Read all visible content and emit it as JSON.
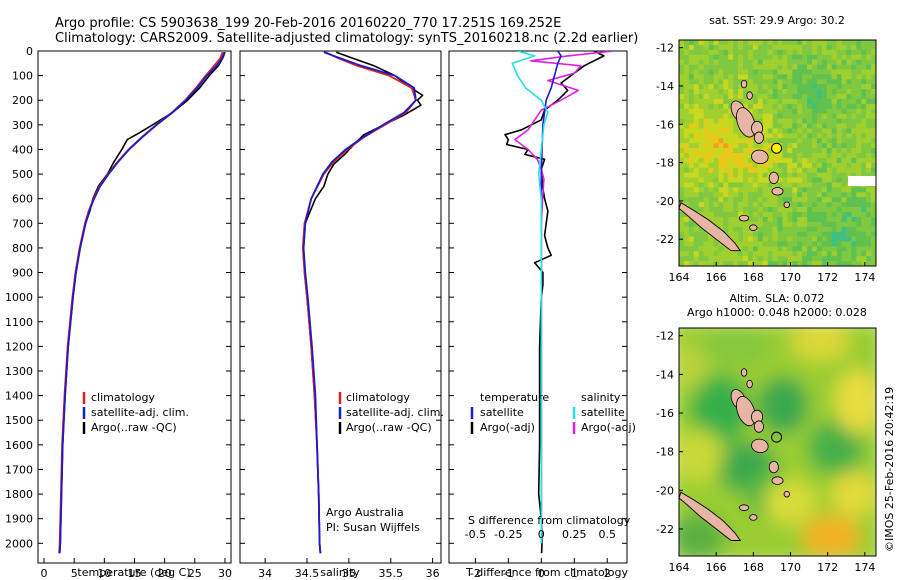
{
  "header": {
    "line1": "Argo profile: CS 5903638_199 20-Feb-2016 20160220_770 17.251S 169.252E",
    "line2": "Climatology: CARS2009. Satellite-adjusted climatology: synTS_20160218.nc (2.2d earlier)"
  },
  "colors": {
    "climatology": "#e02020",
    "satellite": "#1c1ccc",
    "argo": "#000000",
    "satellite_s": "#22e0e8",
    "argo_s": "#e020e0",
    "island": "#e8b4a4"
  },
  "chart_data": [
    {
      "type": "line",
      "id": "temperature",
      "xlabel": "temperature (deg C)",
      "ylabel": "",
      "xlim": [
        -1,
        31
      ],
      "ylim": [
        2080,
        0
      ],
      "xticks": [
        0,
        5,
        10,
        15,
        20,
        25,
        30
      ],
      "xtick_labels": [
        "0",
        "5",
        "10",
        "15",
        "20",
        "25",
        "30"
      ],
      "yticks": [
        0,
        100,
        200,
        300,
        400,
        500,
        600,
        700,
        800,
        900,
        1000,
        1100,
        1200,
        1300,
        1400,
        1500,
        1600,
        1700,
        1800,
        1900,
        2000
      ],
      "ytick_labels": [
        "0",
        "100",
        "200",
        "300",
        "400",
        "500",
        "600",
        "700",
        "800",
        "900",
        "1000",
        "1100",
        "1200",
        "1300",
        "1400",
        "1500",
        "1600",
        "1700",
        "1800",
        "1900",
        "2000"
      ],
      "legend": [
        "climatology",
        "satellite-adj. clim.",
        "Argo(..raw -QC)"
      ],
      "series": [
        {
          "name": "climatology",
          "depth": [
            5,
            30,
            60,
            100,
            150,
            200,
            250,
            300,
            350,
            400,
            450,
            500,
            550,
            600,
            650,
            700,
            800,
            900,
            1000,
            1200,
            1400,
            1600,
            1800,
            2000,
            2040
          ],
          "values": [
            29.6,
            29.2,
            28.2,
            26.8,
            25.2,
            23.4,
            21.2,
            18.6,
            16.2,
            14.0,
            12.2,
            10.6,
            9.2,
            8.2,
            7.4,
            6.8,
            5.9,
            5.2,
            4.7,
            3.9,
            3.4,
            3.0,
            2.8,
            2.6,
            2.5
          ]
        },
        {
          "name": "satellite-adj. clim.",
          "depth": [
            5,
            30,
            60,
            100,
            150,
            200,
            250,
            300,
            350,
            400,
            450,
            500,
            550,
            600,
            650,
            700,
            800,
            900,
            1000,
            1200,
            1400,
            1600,
            1800,
            2000,
            2040
          ],
          "values": [
            29.9,
            29.5,
            28.6,
            27.0,
            25.4,
            23.5,
            21.3,
            18.7,
            16.3,
            14.1,
            12.3,
            10.7,
            9.3,
            8.3,
            7.5,
            6.9,
            6.0,
            5.3,
            4.8,
            4.0,
            3.5,
            3.1,
            2.9,
            2.7,
            2.6
          ]
        },
        {
          "name": "Argo(..raw -QC)",
          "depth": [
            5,
            30,
            60,
            100,
            150,
            200,
            250,
            300,
            330,
            360,
            400,
            450,
            500,
            550,
            600,
            650,
            700,
            800,
            900,
            1000,
            1200,
            1400,
            1600,
            1800,
            2000,
            2040
          ],
          "values": [
            30.0,
            29.6,
            28.9,
            27.4,
            25.8,
            23.8,
            21.3,
            18.0,
            16.0,
            13.8,
            12.9,
            11.6,
            10.5,
            9.0,
            8.1,
            7.6,
            6.9,
            6.0,
            5.3,
            4.8,
            4.0,
            3.5,
            3.1,
            2.9,
            2.7,
            2.6
          ]
        }
      ]
    },
    {
      "type": "line",
      "id": "salinity",
      "xlabel": "salinity",
      "ylabel": "",
      "xlim": [
        33.7,
        36.1
      ],
      "ylim": [
        2080,
        0
      ],
      "xticks": [
        34,
        34.5,
        35,
        35.5,
        36
      ],
      "xtick_labels": [
        "34",
        "34.5",
        "35",
        "35.5",
        "36"
      ],
      "legend": [
        "climatology",
        "satellite-adj. clim.",
        "Argo(..raw -QC)"
      ],
      "annotation_line1": "Argo Australia",
      "annotation_line2": "PI: Susan Wijffels",
      "series": [
        {
          "name": "climatology",
          "depth": [
            5,
            30,
            60,
            100,
            150,
            200,
            250,
            300,
            350,
            400,
            450,
            500,
            600,
            700,
            800,
            900,
            1000,
            1200,
            1400,
            1600,
            1800,
            2000,
            2040
          ],
          "values": [
            34.72,
            34.88,
            35.1,
            35.48,
            35.75,
            35.8,
            35.68,
            35.43,
            35.18,
            34.98,
            34.82,
            34.7,
            34.55,
            34.47,
            34.45,
            34.47,
            34.5,
            34.55,
            34.59,
            34.62,
            34.64,
            34.65,
            34.66
          ]
        },
        {
          "name": "satellite-adj. clim.",
          "depth": [
            5,
            30,
            60,
            100,
            150,
            200,
            250,
            300,
            350,
            400,
            450,
            500,
            600,
            700,
            800,
            900,
            1000,
            1200,
            1400,
            1600,
            1800,
            2000,
            2040
          ],
          "values": [
            34.7,
            34.9,
            35.15,
            35.55,
            35.78,
            35.8,
            35.66,
            35.41,
            35.17,
            34.96,
            34.8,
            34.69,
            34.55,
            34.48,
            34.46,
            34.48,
            34.51,
            34.56,
            34.6,
            34.62,
            34.64,
            34.65,
            34.66
          ]
        },
        {
          "name": "Argo(..raw -QC)",
          "depth": [
            5,
            30,
            60,
            100,
            140,
            180,
            200,
            220,
            260,
            300,
            340,
            380,
            420,
            460,
            500,
            550,
            600,
            650,
            700,
            800,
            900,
            1000,
            1200,
            1400,
            1600,
            1800,
            2000,
            2040
          ],
          "values": [
            34.85,
            35.05,
            35.3,
            35.55,
            35.7,
            35.88,
            35.82,
            35.86,
            35.66,
            35.42,
            35.18,
            35.06,
            34.95,
            34.82,
            34.75,
            34.7,
            34.6,
            34.54,
            34.48,
            34.46,
            34.47,
            34.5,
            34.55,
            34.59,
            34.62,
            34.64,
            34.65,
            34.66
          ]
        }
      ]
    },
    {
      "type": "line",
      "id": "difference",
      "xlabel": "T difference from climatology",
      "xlabel_top": "S difference from climatology",
      "xlim": [
        -2.8,
        2.6
      ],
      "ylim": [
        2080,
        0
      ],
      "xticks": [
        -2,
        -1,
        0,
        1,
        2
      ],
      "xtick_labels": [
        "-2",
        "-1",
        "0",
        "1",
        "2"
      ],
      "s_xtick_labels": [
        "-0.5",
        "-0.25",
        "0",
        "0.25",
        "0.5"
      ],
      "legend_t_title": "temperature",
      "legend_s_title": "salinity",
      "legend_t": [
        "satellite",
        "Argo(-adj)"
      ],
      "legend_s": [
        "satellite",
        "Argo(-adj)"
      ],
      "series": [
        {
          "name": "T satellite",
          "depth": [
            0,
            20,
            50,
            100,
            150,
            200,
            300,
            400,
            500,
            600,
            800,
            1000,
            1500,
            2000
          ],
          "values": [
            0.5,
            0.6,
            0.5,
            0.4,
            0.3,
            0.15,
            0.05,
            0.02,
            0.0,
            0.0,
            0.0,
            0.0,
            0.0,
            0.0
          ]
        },
        {
          "name": "T Argo(-adj)",
          "depth": [
            0,
            20,
            40,
            60,
            80,
            100,
            130,
            160,
            200,
            240,
            280,
            320,
            340,
            360,
            380,
            400,
            420,
            440,
            480,
            520,
            560,
            600,
            650,
            700,
            750,
            800,
            830,
            860,
            900,
            950,
            1000,
            1200,
            1400,
            1600,
            1800,
            1900,
            2000,
            2040
          ],
          "values": [
            1.6,
            1.9,
            1.6,
            1.3,
            1.1,
            0.9,
            0.6,
            0.8,
            0.5,
            0.1,
            0.0,
            -0.6,
            -1.1,
            -1.0,
            -1.05,
            -0.4,
            -0.5,
            0.1,
            0.0,
            0.02,
            0.05,
            0.1,
            0.2,
            0.15,
            0.1,
            0.2,
            0.3,
            -0.2,
            0.05,
            0.05,
            0.0,
            -0.05,
            -0.05,
            -0.05,
            -0.08,
            0.0,
            0.02,
            0.01
          ]
        },
        {
          "name": "S satellite",
          "depth": [
            0,
            20,
            50,
            100,
            150,
            200,
            250,
            300,
            400,
            500,
            600,
            800,
            1000,
            1500,
            2000
          ],
          "values": [
            -0.18,
            -0.05,
            -0.22,
            -0.18,
            -0.12,
            0.0,
            0.05,
            0.02,
            0.0,
            -0.02,
            0.0,
            0.0,
            0.0,
            0.0,
            0.0
          ]
        },
        {
          "name": "S Argo(-adj)",
          "depth": [
            0,
            20,
            40,
            60,
            90,
            120,
            160,
            200,
            240,
            280,
            320,
            360,
            400,
            440,
            480,
            520,
            600,
            700,
            800,
            1000,
            1500,
            2000
          ],
          "values": [
            0.55,
            0.2,
            -0.08,
            0.3,
            0.25,
            0.05,
            0.28,
            0.15,
            0.0,
            -0.05,
            -0.1,
            -0.2,
            -0.1,
            -0.03,
            0.0,
            0.02,
            0.01,
            0.0,
            0.0,
            0.0,
            0.0,
            0.0
          ]
        }
      ]
    },
    {
      "type": "heatmap",
      "id": "sst-map",
      "title": "sat. SST: 29.9 Argo: 30.2",
      "xlim": [
        164,
        174.6
      ],
      "ylim": [
        -23.4,
        -11.6
      ],
      "xticks": [
        164,
        166,
        168,
        170,
        172,
        174
      ],
      "xtick_labels": [
        "164",
        "166",
        "168",
        "170",
        "172",
        "174"
      ],
      "yticks": [
        -12,
        -14,
        -16,
        -18,
        -20,
        -22
      ],
      "ytick_labels": [
        "-12",
        "-14",
        "-16",
        "-18",
        "-20",
        "-22"
      ],
      "marker": {
        "lon": 169.25,
        "lat": -17.25,
        "fill": "#ffee00"
      }
    },
    {
      "type": "heatmap",
      "id": "sla-map",
      "title_line1": "Altim. SLA: 0.072",
      "title_line2": "Argo h1000: 0.048 h2000: 0.028",
      "xlim": [
        164,
        174.6
      ],
      "ylim": [
        -23.4,
        -11.6
      ],
      "xticks": [
        164,
        166,
        168,
        170,
        172,
        174
      ],
      "xtick_labels": [
        "164",
        "166",
        "168",
        "170",
        "172",
        "174"
      ],
      "yticks": [
        -12,
        -14,
        -16,
        -18,
        -20,
        -22
      ],
      "ytick_labels": [
        "-12",
        "-14",
        "-16",
        "-18",
        "-20",
        "-22"
      ],
      "marker": {
        "lon": 169.25,
        "lat": -17.25,
        "fill": "none"
      }
    }
  ],
  "credit": "©IMOS 25-Feb-2016 20:42:19"
}
